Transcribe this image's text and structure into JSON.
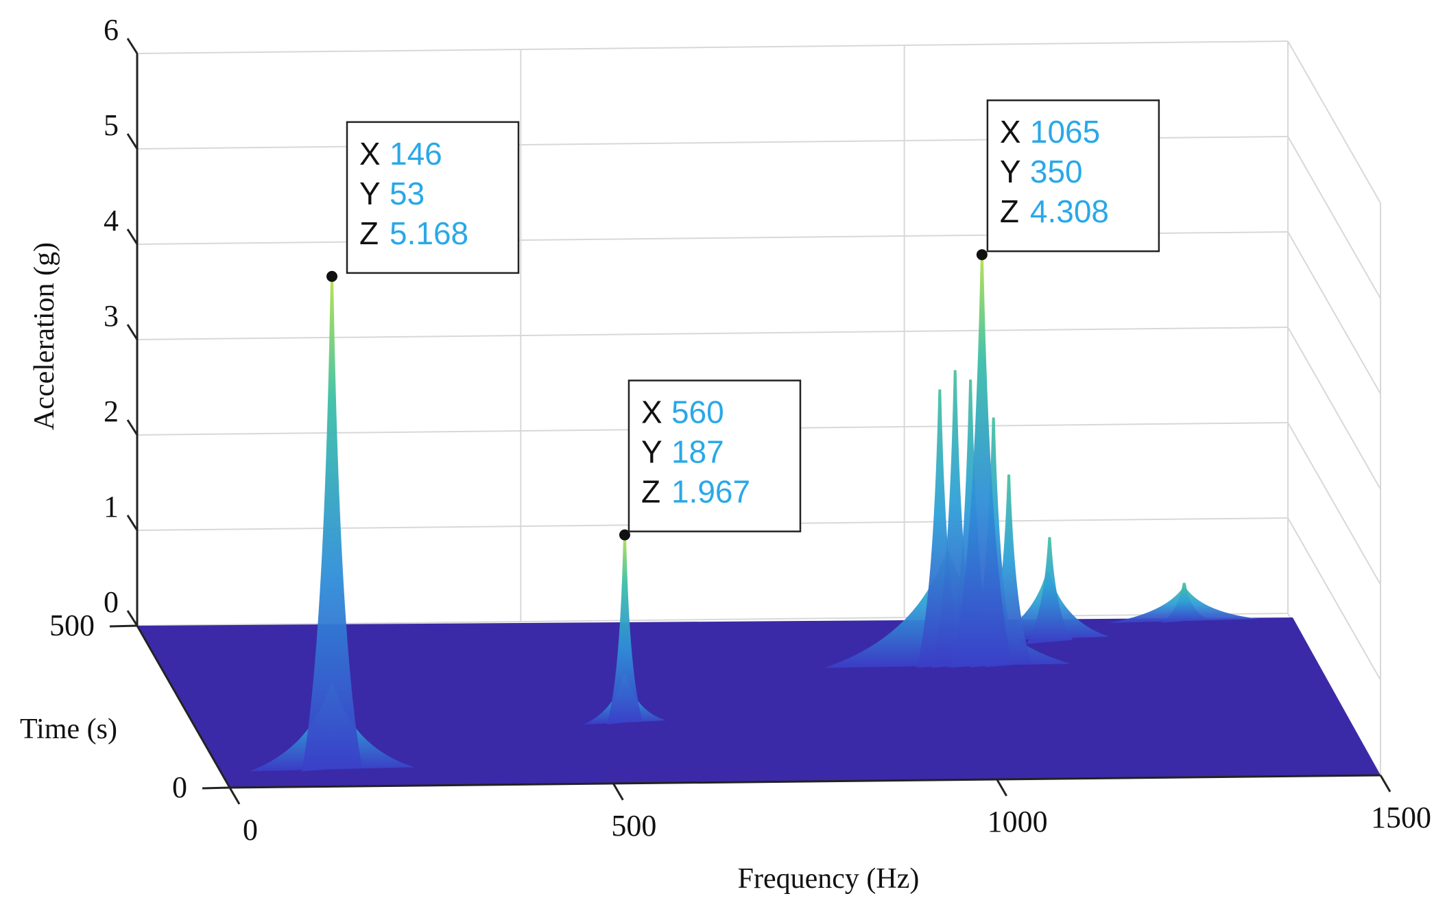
{
  "chart_data": {
    "type": "surface3d",
    "title": "",
    "xlabel": "Frequency (Hz)",
    "ylabel": "Time (s)",
    "zlabel": "Acceleration (g)",
    "xlim": [
      0,
      1500
    ],
    "ylim": [
      0,
      500
    ],
    "zlim": [
      0,
      6
    ],
    "x_ticks": [
      "0",
      "500",
      "1000",
      "1500"
    ],
    "y_ticks": [
      "0",
      "500"
    ],
    "z_ticks": [
      "0",
      "1",
      "2",
      "3",
      "4",
      "5",
      "6"
    ],
    "grid": true,
    "colormap": [
      "#3b1fa6",
      "#3a5bd9",
      "#2f9fd8",
      "#3cbfa8",
      "#a7d94a"
    ],
    "peaks": [
      {
        "x": 146,
        "y": 53,
        "z": 5.168,
        "label": "peak-146"
      },
      {
        "x": 560,
        "y": 187,
        "z": 1.967,
        "label": "peak-560"
      },
      {
        "x": 1065,
        "y": 350,
        "z": 4.308,
        "label": "peak-1065"
      }
    ],
    "ridges": [
      {
        "x": 1010,
        "y": 350,
        "z": 2.9
      },
      {
        "x": 1030,
        "y": 350,
        "z": 3.1
      },
      {
        "x": 1050,
        "y": 350,
        "z": 3.0
      },
      {
        "x": 1080,
        "y": 350,
        "z": 2.6
      },
      {
        "x": 1100,
        "y": 350,
        "z": 2.0
      },
      {
        "x": 1170,
        "y": 420,
        "z": 1.1
      },
      {
        "x": 1360,
        "y": 480,
        "z": 0.4
      }
    ],
    "datatips": [
      {
        "x_label": "X",
        "x": "146",
        "y_label": "Y",
        "y": "53",
        "z_label": "Z",
        "z": "5.168"
      },
      {
        "x_label": "X",
        "x": "560",
        "y_label": "Y",
        "y": "187",
        "z_label": "Z",
        "z": "1.967"
      },
      {
        "x_label": "X",
        "x": "1065",
        "y_label": "Y",
        "y": "350",
        "z_label": "Z",
        "z": "4.308"
      }
    ]
  }
}
